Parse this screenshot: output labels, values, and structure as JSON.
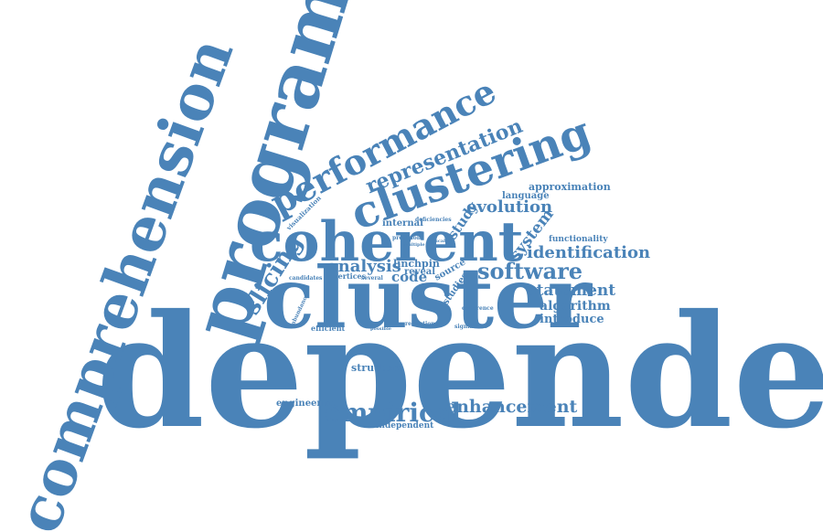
{
  "colors": {
    "word": "#4a83b8",
    "background": "#ffffff"
  },
  "words": [
    "dependence",
    "comprehension",
    "program",
    "cluster",
    "coherent",
    "clustering",
    "performance",
    "representation",
    "software",
    "empirical",
    "slicing",
    "analysis",
    "enhancement",
    "identification",
    "evolution",
    "statement",
    "system",
    "study",
    "algorithm",
    "introduce",
    "approximation",
    "language",
    "functionality",
    "code",
    "structure",
    "engineering",
    "independent",
    "linchpin",
    "reveal",
    "internal",
    "source",
    "studies",
    "efficient",
    "vertices",
    "visualization",
    "deficiencies",
    "candidates",
    "significant",
    "reduction",
    "several",
    "precision",
    "multiple",
    "possible",
    "coherence",
    "abundance",
    "scale"
  ]
}
